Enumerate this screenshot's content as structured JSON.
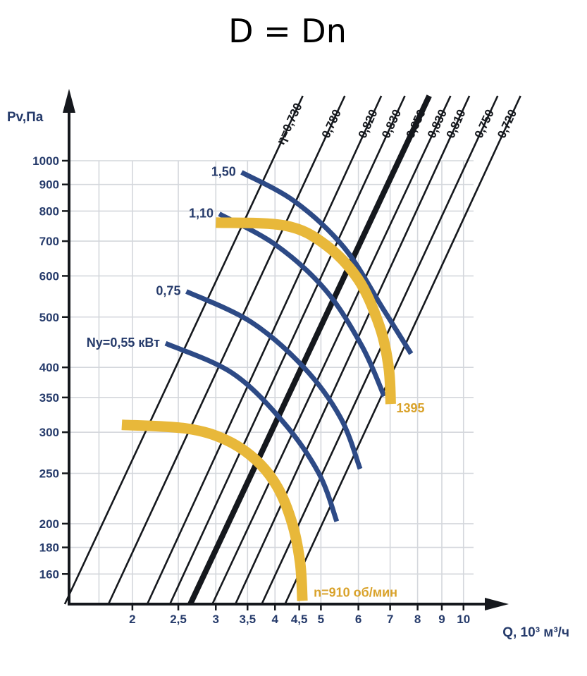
{
  "title": "D = Dn",
  "colors": {
    "text": "#263b6b",
    "grid": "#d4d7dc",
    "axis": "#15181d",
    "eff_line": "#15181d",
    "power": "#2d4a86",
    "speed": "#e8b83a",
    "speed_text": "#d9a22a"
  },
  "chart_data": {
    "type": "line",
    "x_axis": {
      "label": "Q, 10³ м³/ч",
      "scale": "log",
      "range": [
        1.47,
        10.5
      ],
      "ticks": [
        {
          "v": 2,
          "label": "2"
        },
        {
          "v": 2.5,
          "label": "2,5"
        },
        {
          "v": 3,
          "label": "3"
        },
        {
          "v": 3.5,
          "label": "3,5"
        },
        {
          "v": 4,
          "label": "4"
        },
        {
          "v": 4.5,
          "label": "4,5"
        },
        {
          "v": 5,
          "label": "5"
        },
        {
          "v": 6,
          "label": "6"
        },
        {
          "v": 7,
          "label": "7"
        },
        {
          "v": 8,
          "label": "8"
        },
        {
          "v": 9,
          "label": "9"
        },
        {
          "v": 10,
          "label": "10"
        }
      ],
      "grid": [
        1.7,
        2,
        2.5,
        3,
        3.5,
        4,
        4.5,
        5,
        6,
        7,
        8,
        9,
        10
      ]
    },
    "y_axis": {
      "label": "Pv,Па",
      "scale": "log",
      "range": [
        140,
        1000
      ],
      "ticks": [
        {
          "v": 160,
          "label": "160"
        },
        {
          "v": 180,
          "label": "180"
        },
        {
          "v": 200,
          "label": "200"
        },
        {
          "v": 250,
          "label": "250"
        },
        {
          "v": 300,
          "label": "300"
        },
        {
          "v": 350,
          "label": "350"
        },
        {
          "v": 400,
          "label": "400"
        },
        {
          "v": 500,
          "label": "500"
        },
        {
          "v": 600,
          "label": "600"
        },
        {
          "v": 700,
          "label": "700"
        },
        {
          "v": 800,
          "label": "800"
        },
        {
          "v": 900,
          "label": "900"
        },
        {
          "v": 1000,
          "label": "1000"
        }
      ],
      "grid": [
        160,
        180,
        200,
        250,
        300,
        350,
        400,
        500,
        600,
        700,
        800,
        900,
        1000
      ]
    },
    "efficiency_lines": [
      {
        "label": "η=0,730",
        "q_at_bottom": 1.44,
        "q_at_top": 3.95,
        "bold": false
      },
      {
        "label": "0,780",
        "q_at_bottom": 1.78,
        "q_at_top": 4.85,
        "bold": false
      },
      {
        "label": "0,820",
        "q_at_bottom": 2.15,
        "q_at_top": 5.8,
        "bold": false
      },
      {
        "label": "0,830",
        "q_at_bottom": 2.4,
        "q_at_top": 6.5,
        "bold": false
      },
      {
        "label": "0,850",
        "q_at_bottom": 2.65,
        "q_at_top": 7.3,
        "bold": true
      },
      {
        "label": "0,830",
        "q_at_bottom": 2.95,
        "q_at_top": 8.1,
        "bold": false
      },
      {
        "label": "0,810",
        "q_at_bottom": 3.3,
        "q_at_top": 8.9,
        "bold": false
      },
      {
        "label": "0,750",
        "q_at_bottom": 3.75,
        "q_at_top": 10.2,
        "bold": false
      },
      {
        "label": "0,720",
        "q_at_bottom": 4.2,
        "q_at_top": 11.4,
        "bold": false
      }
    ],
    "series": [
      {
        "name": "1,50",
        "kind": "power",
        "label": "1,50",
        "points": [
          [
            3.4,
            950
          ],
          [
            4.4,
            835
          ],
          [
            5.6,
            680
          ],
          [
            6.75,
            520
          ],
          [
            7.75,
            425
          ]
        ]
      },
      {
        "name": "1,10",
        "kind": "power",
        "label": "1,10",
        "points": [
          [
            3.05,
            790
          ],
          [
            4.0,
            690
          ],
          [
            5.1,
            565
          ],
          [
            6.1,
            440
          ],
          [
            6.8,
            352
          ]
        ]
      },
      {
        "name": "0,75",
        "kind": "power",
        "label": "0,75",
        "points": [
          [
            2.6,
            560
          ],
          [
            3.55,
            490
          ],
          [
            4.6,
            400
          ],
          [
            5.5,
            320
          ],
          [
            6.05,
            255
          ]
        ]
      },
      {
        "name": "Ny=0,55 кВт",
        "kind": "power",
        "label": "Ny=0,55 кВт",
        "points": [
          [
            2.35,
            445
          ],
          [
            3.25,
            390
          ],
          [
            4.15,
            315
          ],
          [
            4.95,
            250
          ],
          [
            5.4,
            202
          ]
        ]
      },
      {
        "name": "1395",
        "kind": "speed",
        "label": "1395",
        "points": [
          [
            3.0,
            760
          ],
          [
            4.2,
            750
          ],
          [
            5.1,
            690
          ],
          [
            6.0,
            590
          ],
          [
            6.65,
            480
          ],
          [
            6.95,
            400
          ],
          [
            7.02,
            340
          ]
        ]
      },
      {
        "name": "n=910 об/мин",
        "kind": "speed",
        "label": "n=910 об/мин",
        "points": [
          [
            1.9,
            310
          ],
          [
            2.6,
            305
          ],
          [
            3.15,
            290
          ],
          [
            3.65,
            265
          ],
          [
            4.05,
            235
          ],
          [
            4.35,
            200
          ],
          [
            4.52,
            168
          ],
          [
            4.57,
            142
          ]
        ]
      }
    ]
  }
}
